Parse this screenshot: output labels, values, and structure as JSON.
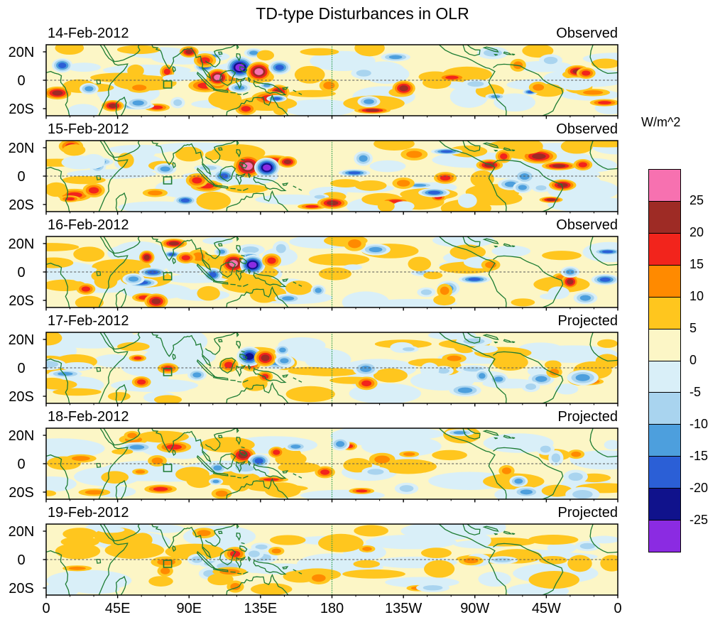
{
  "title": "TD-type Disturbances in OLR",
  "units_label": "W/m^2",
  "panels": [
    {
      "date": "14-Feb-2012",
      "mode": "Observed"
    },
    {
      "date": "15-Feb-2012",
      "mode": "Observed"
    },
    {
      "date": "16-Feb-2012",
      "mode": "Observed"
    },
    {
      "date": "17-Feb-2012",
      "mode": "Projected"
    },
    {
      "date": "18-Feb-2012",
      "mode": "Projected"
    },
    {
      "date": "19-Feb-2012",
      "mode": "Projected"
    }
  ],
  "yaxis": {
    "labels": [
      "20N",
      "0",
      "20S"
    ]
  },
  "xaxis": {
    "labels": [
      "0",
      "45E",
      "90E",
      "135E",
      "180",
      "135W",
      "90W",
      "45W",
      "0"
    ]
  },
  "colorbar": {
    "ticks": [
      "25",
      "20",
      "15",
      "10",
      "5",
      "0",
      "-5",
      "-10",
      "-15",
      "-20",
      "-25"
    ],
    "colors": [
      "#F771B0",
      "#9E2B25",
      "#F2241C",
      "#FF8A00",
      "#FFC61E",
      "#FCF6C6",
      "#D9EFF8",
      "#A9D4EF",
      "#4D9FDD",
      "#2B5FD6",
      "#10128C",
      "#8B2BE2"
    ]
  },
  "map_colors": {
    "coastline": "#1d7c33",
    "equator_line": "#555555",
    "dateline": "#2f9e4e",
    "marker_box": "#1d7c33",
    "panel_border": "#000000"
  },
  "chart_data": {
    "type": "heatmap",
    "title": "TD-type Disturbances in OLR",
    "variable": "TD-type filtered OLR anomaly",
    "units": "W/m^2",
    "panels": [
      {
        "date": "14-Feb-2012",
        "status": "Observed"
      },
      {
        "date": "15-Feb-2012",
        "status": "Observed"
      },
      {
        "date": "16-Feb-2012",
        "status": "Observed"
      },
      {
        "date": "17-Feb-2012",
        "status": "Projected"
      },
      {
        "date": "18-Feb-2012",
        "status": "Projected"
      },
      {
        "date": "19-Feb-2012",
        "status": "Projected"
      }
    ],
    "x": {
      "tick_labels": [
        "0",
        "45E",
        "90E",
        "135E",
        "180",
        "135W",
        "90W",
        "45W",
        "0"
      ],
      "range_lon_deg": [
        0,
        360
      ]
    },
    "y": {
      "tick_labels": [
        "20N",
        "0",
        "20S"
      ],
      "range_lat_deg": [
        -25,
        25
      ]
    },
    "contour_levels": [
      -25,
      -20,
      -15,
      -10,
      -5,
      0,
      5,
      10,
      15,
      20,
      25
    ],
    "colorscale": [
      "#8B2BE2",
      "#10128C",
      "#2B5FD6",
      "#4D9FDD",
      "#A9D4EF",
      "#D9EFF8",
      "#FCF6C6",
      "#FFC61E",
      "#FF8A00",
      "#F2241C",
      "#9E2B25",
      "#F771B0"
    ],
    "legend_position": "right",
    "overlays": [
      "green coastlines",
      "dashed equator line",
      "dashed vertical line at 180",
      "small green box near 75-80E just south of equator"
    ],
    "description": "Six stacked tropical lon-lat maps (20N-20S, 0-360E) of TD-type OLR anomalies; a strong positive/negative anomaly couplet near 110-150E in the observed panels weakens through the projected panels."
  }
}
